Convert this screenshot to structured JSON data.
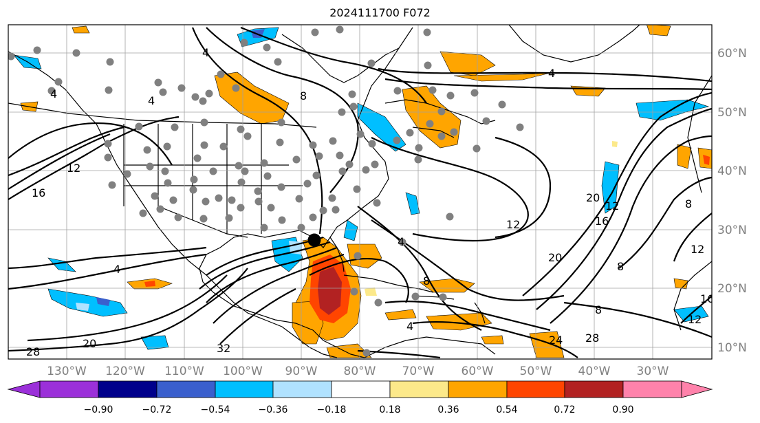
{
  "title": "2024111700 F072",
  "longitude_labels": [
    "130°W",
    "120°W",
    "110°W",
    "100°W",
    "90°W",
    "80°W",
    "70°W",
    "60°W",
    "50°W",
    "40°W",
    "30°W"
  ],
  "latitude_labels": [
    "60°N",
    "50°N",
    "40°N",
    "30°N",
    "20°N",
    "10°N"
  ],
  "colorbar": {
    "tick_labels": [
      "−0.90",
      "−0.72",
      "−0.54",
      "−0.36",
      "−0.18",
      "0.18",
      "0.36",
      "0.54",
      "0.72",
      "0.90"
    ],
    "colors": [
      "#9b30d9",
      "#00008b",
      "#3a5fcd",
      "#00bfff",
      "#b0e2ff",
      "#ffffff",
      "#fce98a",
      "#ffa500",
      "#ff4500",
      "#b22222",
      "#ff82ab"
    ]
  },
  "contour_labels": [
    "4",
    "8",
    "12",
    "16",
    "20",
    "24",
    "28",
    "32"
  ],
  "colors": {
    "land_outline": "#000000",
    "grid": "#a0a0a0",
    "stations": "#808080",
    "marker": "#000000"
  }
}
